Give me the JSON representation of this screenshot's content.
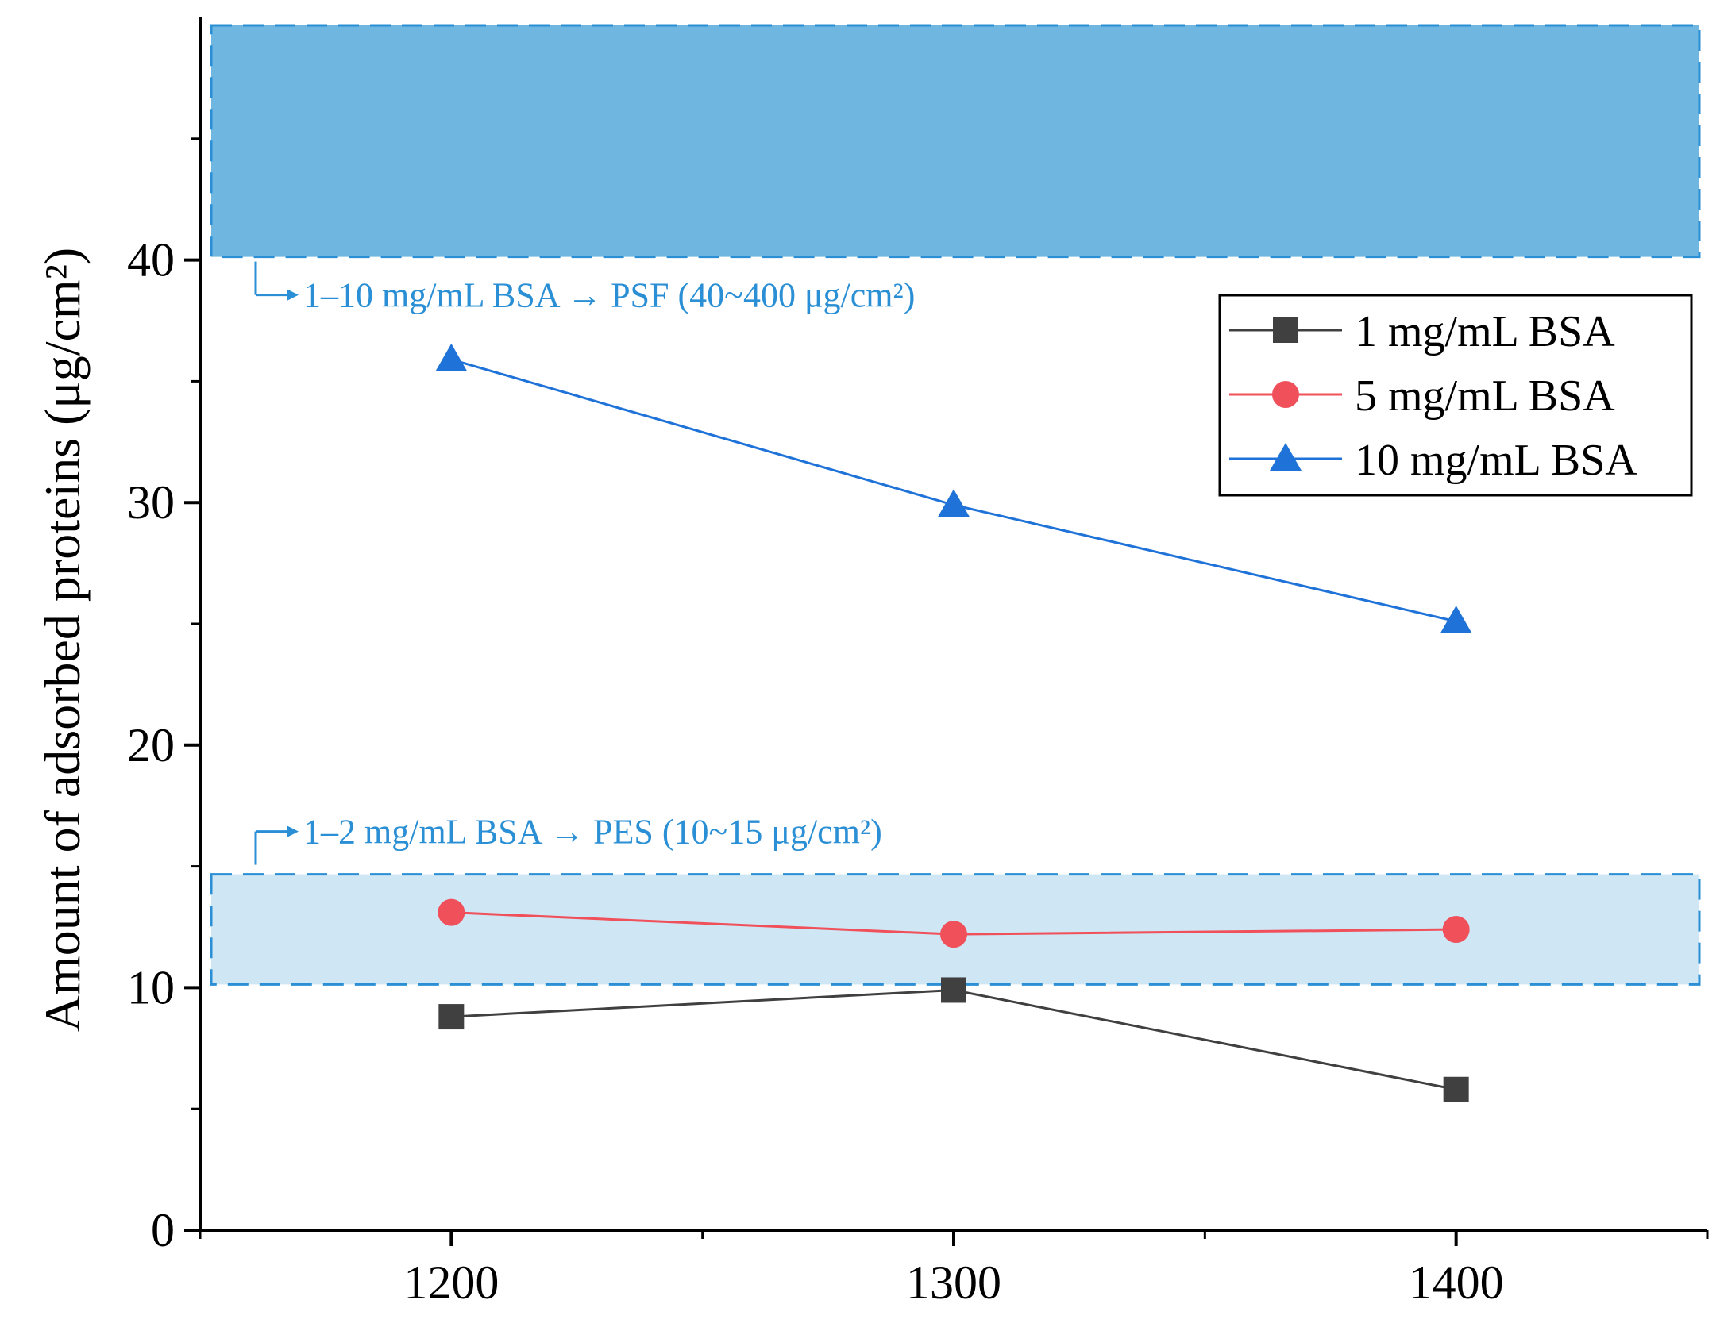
{
  "chart_data": {
    "type": "line",
    "title": "",
    "xlabel": "",
    "ylabel": "Amount of adsorbed proteins (μg/cm²)",
    "xlim": [
      1150,
      1450
    ],
    "ylim": [
      0,
      50
    ],
    "x_ticks": [
      1200,
      1300,
      1400
    ],
    "x_tick_labels": [
      "1200",
      "1300",
      "1400"
    ],
    "y_ticks": [
      0,
      10,
      20,
      30,
      40
    ],
    "y_tick_labels": [
      "0",
      "10",
      "20",
      "30",
      "40"
    ],
    "grid": false,
    "legend_position": "top-right",
    "series": [
      {
        "name": "1 mg/mL BSA",
        "marker": "square",
        "color": "#404040",
        "x": [
          1200,
          1300,
          1400
        ],
        "values": [
          8.8,
          9.9,
          5.8
        ]
      },
      {
        "name": "5 mg/mL BSA",
        "marker": "circle",
        "color": "#f0505a",
        "x": [
          1200,
          1300,
          1400
        ],
        "values": [
          13.1,
          12.2,
          12.4
        ]
      },
      {
        "name": "10 mg/mL BSA",
        "marker": "triangle",
        "color": "#1f73d8",
        "x": [
          1200,
          1300,
          1400
        ],
        "values": [
          35.9,
          29.9,
          25.1
        ]
      }
    ],
    "bands": [
      {
        "y_from": 40,
        "y_to": 50,
        "fill": "#6fb6e1",
        "border": "#2a8fd4",
        "label": "1–10 mg/mL BSA → PSF (40~400 μg/cm²)"
      },
      {
        "y_from": 10,
        "y_to": 15,
        "fill": "#cfe6f5",
        "border": "#2a8fd4",
        "label": "1–2 mg/mL BSA → PES (10~15 μg/cm²)"
      }
    ],
    "annotation_color": "#2a8fd4"
  }
}
